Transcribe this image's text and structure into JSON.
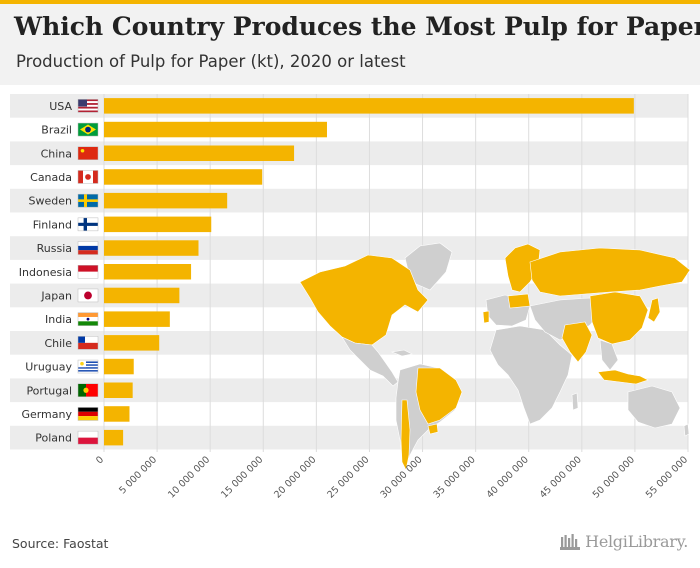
{
  "header": {
    "title": "Which Country Produces the Most Pulp for Paper?",
    "subtitle": "Production of Pulp for Paper (kt), 2020 or latest"
  },
  "footer": {
    "source": "Source: Faostat",
    "logo_text": "HelgiLibrary."
  },
  "colors": {
    "bar": "#f4b400",
    "row_band": "#ececec",
    "grid": "#dddddd",
    "map_land": "#cfcfcf",
    "map_highlight": "#f4b400"
  },
  "map": {
    "highlighted_countries": [
      "USA",
      "Canada",
      "Brazil",
      "Uruguay",
      "Chile",
      "Finland",
      "Sweden",
      "Russia",
      "Portugal",
      "Germany",
      "Poland",
      "China",
      "India",
      "Japan",
      "Indonesia"
    ]
  },
  "chart_data": {
    "type": "bar",
    "orientation": "horizontal",
    "categories": [
      "USA",
      "Brazil",
      "China",
      "Canada",
      "Sweden",
      "Finland",
      "Russia",
      "Indonesia",
      "Japan",
      "India",
      "Chile",
      "Uruguay",
      "Portugal",
      "Germany",
      "Poland"
    ],
    "values": [
      49900000,
      21000000,
      17900000,
      14900000,
      11600000,
      10100000,
      8900000,
      8200000,
      7100000,
      6200000,
      5200000,
      2800000,
      2700000,
      2400000,
      1800000
    ],
    "xlim": [
      0,
      55000000
    ],
    "xticks": [
      0,
      5000000,
      10000000,
      15000000,
      20000000,
      25000000,
      30000000,
      35000000,
      40000000,
      45000000,
      50000000,
      55000000
    ],
    "xtick_labels": [
      "0",
      "5 000 000",
      "10 000 000",
      "15 000 000",
      "20 000 000",
      "25 000 000",
      "30 000 000",
      "35 000 000",
      "40 000 000",
      "45 000 000",
      "50 000 000",
      "55 000 000"
    ],
    "grid": true,
    "legend": "none",
    "flags": [
      "us-flag-icon",
      "brazil-flag-icon",
      "china-flag-icon",
      "canada-flag-icon",
      "sweden-flag-icon",
      "finland-flag-icon",
      "russia-flag-icon",
      "indonesia-flag-icon",
      "japan-flag-icon",
      "india-flag-icon",
      "chile-flag-icon",
      "uruguay-flag-icon",
      "portugal-flag-icon",
      "germany-flag-icon",
      "poland-flag-icon"
    ]
  }
}
